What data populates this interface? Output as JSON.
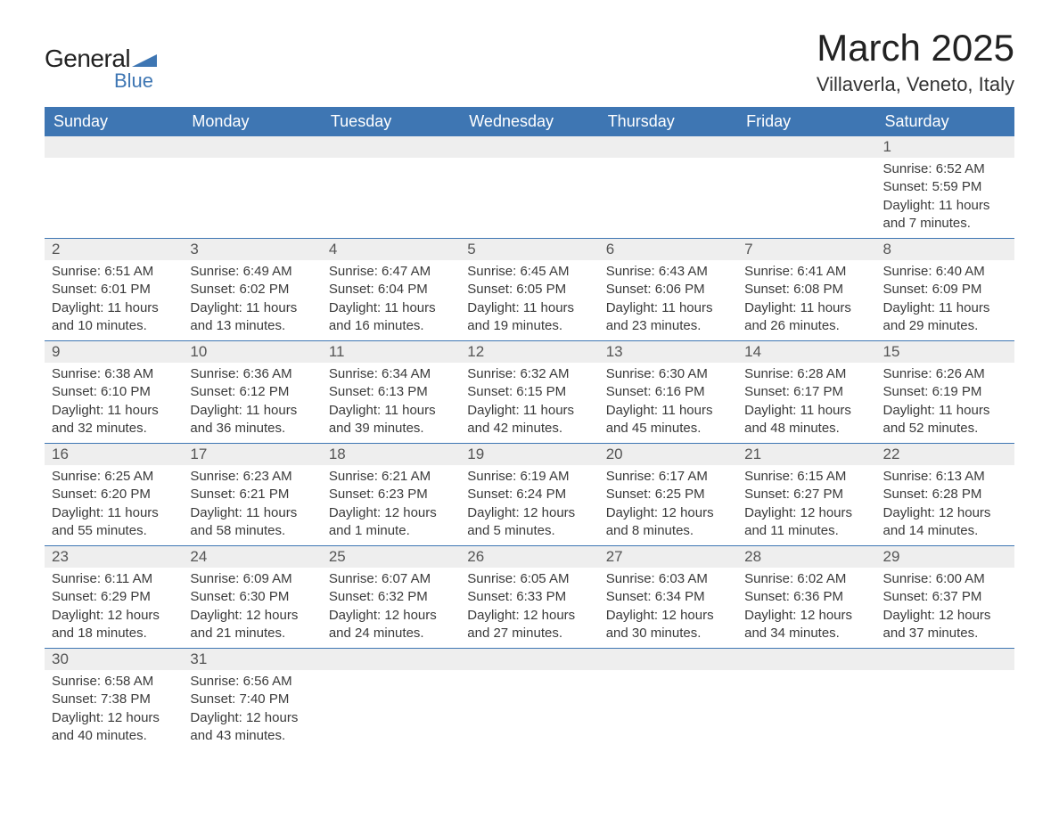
{
  "logo": {
    "general": "General",
    "blue": "Blue",
    "flag_color": "#3e76b3"
  },
  "title": "March 2025",
  "location": "Villaverla, Veneto, Italy",
  "colors": {
    "header_bg": "#3e76b3",
    "header_text": "#ffffff",
    "daynum_bg": "#eeeeee",
    "row_border": "#3e76b3",
    "body_bg": "#ffffff",
    "text": "#3a3a3a"
  },
  "weekdays": [
    "Sunday",
    "Monday",
    "Tuesday",
    "Wednesday",
    "Thursday",
    "Friday",
    "Saturday"
  ],
  "weeks": [
    [
      {
        "empty": true
      },
      {
        "empty": true
      },
      {
        "empty": true
      },
      {
        "empty": true
      },
      {
        "empty": true
      },
      {
        "empty": true
      },
      {
        "day": "1",
        "sunrise": "Sunrise: 6:52 AM",
        "sunset": "Sunset: 5:59 PM",
        "daylight": "Daylight: 11 hours and 7 minutes."
      }
    ],
    [
      {
        "day": "2",
        "sunrise": "Sunrise: 6:51 AM",
        "sunset": "Sunset: 6:01 PM",
        "daylight": "Daylight: 11 hours and 10 minutes."
      },
      {
        "day": "3",
        "sunrise": "Sunrise: 6:49 AM",
        "sunset": "Sunset: 6:02 PM",
        "daylight": "Daylight: 11 hours and 13 minutes."
      },
      {
        "day": "4",
        "sunrise": "Sunrise: 6:47 AM",
        "sunset": "Sunset: 6:04 PM",
        "daylight": "Daylight: 11 hours and 16 minutes."
      },
      {
        "day": "5",
        "sunrise": "Sunrise: 6:45 AM",
        "sunset": "Sunset: 6:05 PM",
        "daylight": "Daylight: 11 hours and 19 minutes."
      },
      {
        "day": "6",
        "sunrise": "Sunrise: 6:43 AM",
        "sunset": "Sunset: 6:06 PM",
        "daylight": "Daylight: 11 hours and 23 minutes."
      },
      {
        "day": "7",
        "sunrise": "Sunrise: 6:41 AM",
        "sunset": "Sunset: 6:08 PM",
        "daylight": "Daylight: 11 hours and 26 minutes."
      },
      {
        "day": "8",
        "sunrise": "Sunrise: 6:40 AM",
        "sunset": "Sunset: 6:09 PM",
        "daylight": "Daylight: 11 hours and 29 minutes."
      }
    ],
    [
      {
        "day": "9",
        "sunrise": "Sunrise: 6:38 AM",
        "sunset": "Sunset: 6:10 PM",
        "daylight": "Daylight: 11 hours and 32 minutes."
      },
      {
        "day": "10",
        "sunrise": "Sunrise: 6:36 AM",
        "sunset": "Sunset: 6:12 PM",
        "daylight": "Daylight: 11 hours and 36 minutes."
      },
      {
        "day": "11",
        "sunrise": "Sunrise: 6:34 AM",
        "sunset": "Sunset: 6:13 PM",
        "daylight": "Daylight: 11 hours and 39 minutes."
      },
      {
        "day": "12",
        "sunrise": "Sunrise: 6:32 AM",
        "sunset": "Sunset: 6:15 PM",
        "daylight": "Daylight: 11 hours and 42 minutes."
      },
      {
        "day": "13",
        "sunrise": "Sunrise: 6:30 AM",
        "sunset": "Sunset: 6:16 PM",
        "daylight": "Daylight: 11 hours and 45 minutes."
      },
      {
        "day": "14",
        "sunrise": "Sunrise: 6:28 AM",
        "sunset": "Sunset: 6:17 PM",
        "daylight": "Daylight: 11 hours and 48 minutes."
      },
      {
        "day": "15",
        "sunrise": "Sunrise: 6:26 AM",
        "sunset": "Sunset: 6:19 PM",
        "daylight": "Daylight: 11 hours and 52 minutes."
      }
    ],
    [
      {
        "day": "16",
        "sunrise": "Sunrise: 6:25 AM",
        "sunset": "Sunset: 6:20 PM",
        "daylight": "Daylight: 11 hours and 55 minutes."
      },
      {
        "day": "17",
        "sunrise": "Sunrise: 6:23 AM",
        "sunset": "Sunset: 6:21 PM",
        "daylight": "Daylight: 11 hours and 58 minutes."
      },
      {
        "day": "18",
        "sunrise": "Sunrise: 6:21 AM",
        "sunset": "Sunset: 6:23 PM",
        "daylight": "Daylight: 12 hours and 1 minute."
      },
      {
        "day": "19",
        "sunrise": "Sunrise: 6:19 AM",
        "sunset": "Sunset: 6:24 PM",
        "daylight": "Daylight: 12 hours and 5 minutes."
      },
      {
        "day": "20",
        "sunrise": "Sunrise: 6:17 AM",
        "sunset": "Sunset: 6:25 PM",
        "daylight": "Daylight: 12 hours and 8 minutes."
      },
      {
        "day": "21",
        "sunrise": "Sunrise: 6:15 AM",
        "sunset": "Sunset: 6:27 PM",
        "daylight": "Daylight: 12 hours and 11 minutes."
      },
      {
        "day": "22",
        "sunrise": "Sunrise: 6:13 AM",
        "sunset": "Sunset: 6:28 PM",
        "daylight": "Daylight: 12 hours and 14 minutes."
      }
    ],
    [
      {
        "day": "23",
        "sunrise": "Sunrise: 6:11 AM",
        "sunset": "Sunset: 6:29 PM",
        "daylight": "Daylight: 12 hours and 18 minutes."
      },
      {
        "day": "24",
        "sunrise": "Sunrise: 6:09 AM",
        "sunset": "Sunset: 6:30 PM",
        "daylight": "Daylight: 12 hours and 21 minutes."
      },
      {
        "day": "25",
        "sunrise": "Sunrise: 6:07 AM",
        "sunset": "Sunset: 6:32 PM",
        "daylight": "Daylight: 12 hours and 24 minutes."
      },
      {
        "day": "26",
        "sunrise": "Sunrise: 6:05 AM",
        "sunset": "Sunset: 6:33 PM",
        "daylight": "Daylight: 12 hours and 27 minutes."
      },
      {
        "day": "27",
        "sunrise": "Sunrise: 6:03 AM",
        "sunset": "Sunset: 6:34 PM",
        "daylight": "Daylight: 12 hours and 30 minutes."
      },
      {
        "day": "28",
        "sunrise": "Sunrise: 6:02 AM",
        "sunset": "Sunset: 6:36 PM",
        "daylight": "Daylight: 12 hours and 34 minutes."
      },
      {
        "day": "29",
        "sunrise": "Sunrise: 6:00 AM",
        "sunset": "Sunset: 6:37 PM",
        "daylight": "Daylight: 12 hours and 37 minutes."
      }
    ],
    [
      {
        "day": "30",
        "sunrise": "Sunrise: 6:58 AM",
        "sunset": "Sunset: 7:38 PM",
        "daylight": "Daylight: 12 hours and 40 minutes."
      },
      {
        "day": "31",
        "sunrise": "Sunrise: 6:56 AM",
        "sunset": "Sunset: 7:40 PM",
        "daylight": "Daylight: 12 hours and 43 minutes."
      },
      {
        "empty": true
      },
      {
        "empty": true
      },
      {
        "empty": true
      },
      {
        "empty": true
      },
      {
        "empty": true
      }
    ]
  ]
}
